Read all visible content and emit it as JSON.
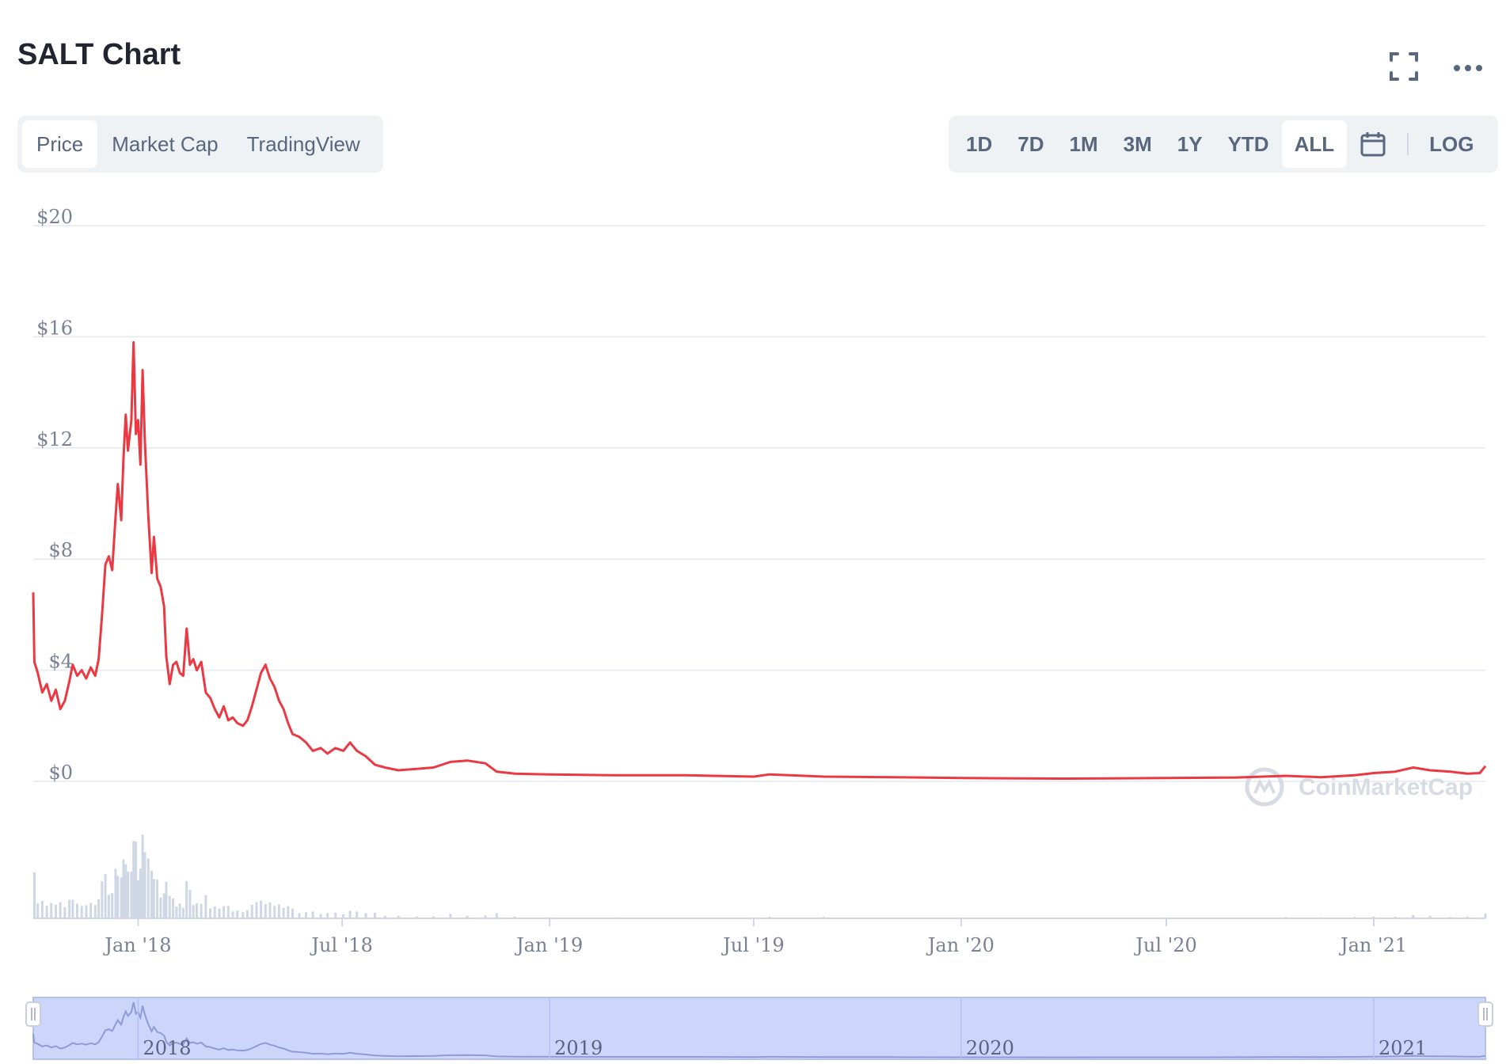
{
  "header": {
    "title": "SALT Chart",
    "fullscreen_icon": "fullscreen-icon",
    "more_icon": "more-icon"
  },
  "tabs": [
    {
      "label": "Price",
      "active": true
    },
    {
      "label": "Market Cap",
      "active": false
    },
    {
      "label": "TradingView",
      "active": false
    }
  ],
  "ranges": [
    {
      "label": "1D",
      "active": false
    },
    {
      "label": "7D",
      "active": false
    },
    {
      "label": "1M",
      "active": false
    },
    {
      "label": "3M",
      "active": false
    },
    {
      "label": "1Y",
      "active": false
    },
    {
      "label": "YTD",
      "active": false
    },
    {
      "label": "ALL",
      "active": true
    }
  ],
  "calendar_icon": "calendar-icon",
  "log_label": "LOG",
  "watermark": "CoinMarketCap",
  "colors": {
    "line": "#ea3943",
    "volume": "#cfd6e4",
    "navigator": "#ccd6fb",
    "grid": "#eff2f5"
  },
  "chart_data": {
    "type": "line",
    "title": "SALT Chart",
    "y_ticks": [
      "$0",
      "$4",
      "$8",
      "$12",
      "$16",
      "$20"
    ],
    "ylim": [
      0,
      20
    ],
    "x_ticks": [
      {
        "label": "Jan '18",
        "date": "2018-01-01"
      },
      {
        "label": "Jul '18",
        "date": "2018-07-01"
      },
      {
        "label": "Jan '19",
        "date": "2019-01-01"
      },
      {
        "label": "Jul '19",
        "date": "2019-07-01"
      },
      {
        "label": "Jan '20",
        "date": "2020-01-01"
      },
      {
        "label": "Jul '20",
        "date": "2020-07-01"
      },
      {
        "label": "Jan '21",
        "date": "2021-01-01"
      }
    ],
    "xlim": [
      "2017-09-30",
      "2021-04-10"
    ],
    "navigator_labels": [
      {
        "label": "2018",
        "date": "2018-01-01"
      },
      {
        "label": "2019",
        "date": "2019-01-01"
      },
      {
        "label": "2020",
        "date": "2020-01-01"
      },
      {
        "label": "2021",
        "date": "2021-01-01"
      }
    ],
    "series": [
      {
        "values": [
          [
            "2017-09-30",
            6.8
          ],
          [
            "2017-10-01",
            4.3
          ],
          [
            "2017-10-04",
            3.9
          ],
          [
            "2017-10-08",
            3.2
          ],
          [
            "2017-10-12",
            3.5
          ],
          [
            "2017-10-16",
            2.9
          ],
          [
            "2017-10-20",
            3.3
          ],
          [
            "2017-10-24",
            2.6
          ],
          [
            "2017-10-28",
            2.9
          ],
          [
            "2017-11-01",
            3.6
          ],
          [
            "2017-11-04",
            4.2
          ],
          [
            "2017-11-08",
            3.8
          ],
          [
            "2017-11-12",
            4.0
          ],
          [
            "2017-11-16",
            3.7
          ],
          [
            "2017-11-20",
            4.1
          ],
          [
            "2017-11-24",
            3.8
          ],
          [
            "2017-11-27",
            4.4
          ],
          [
            "2017-11-30",
            6.0
          ],
          [
            "2017-12-03",
            7.8
          ],
          [
            "2017-12-06",
            8.1
          ],
          [
            "2017-12-09",
            7.6
          ],
          [
            "2017-12-12",
            9.5
          ],
          [
            "2017-12-14",
            10.7
          ],
          [
            "2017-12-17",
            9.4
          ],
          [
            "2017-12-19",
            11.6
          ],
          [
            "2017-12-21",
            13.2
          ],
          [
            "2017-12-23",
            11.9
          ],
          [
            "2017-12-26",
            13.0
          ],
          [
            "2017-12-28",
            15.8
          ],
          [
            "2017-12-30",
            12.5
          ],
          [
            "2018-01-01",
            13.0
          ],
          [
            "2018-01-03",
            11.4
          ],
          [
            "2018-01-05",
            14.8
          ],
          [
            "2018-01-07",
            12.2
          ],
          [
            "2018-01-10",
            9.6
          ],
          [
            "2018-01-13",
            7.5
          ],
          [
            "2018-01-15",
            8.8
          ],
          [
            "2018-01-18",
            7.3
          ],
          [
            "2018-01-21",
            7.0
          ],
          [
            "2018-01-24",
            6.3
          ],
          [
            "2018-01-26",
            4.5
          ],
          [
            "2018-01-29",
            3.5
          ],
          [
            "2018-02-01",
            4.2
          ],
          [
            "2018-02-04",
            4.3
          ],
          [
            "2018-02-07",
            3.9
          ],
          [
            "2018-02-10",
            3.8
          ],
          [
            "2018-02-13",
            5.5
          ],
          [
            "2018-02-16",
            4.2
          ],
          [
            "2018-02-19",
            4.4
          ],
          [
            "2018-02-22",
            4.0
          ],
          [
            "2018-02-26",
            4.3
          ],
          [
            "2018-03-02",
            3.2
          ],
          [
            "2018-03-06",
            3.0
          ],
          [
            "2018-03-10",
            2.6
          ],
          [
            "2018-03-14",
            2.3
          ],
          [
            "2018-03-18",
            2.7
          ],
          [
            "2018-03-22",
            2.2
          ],
          [
            "2018-03-26",
            2.3
          ],
          [
            "2018-03-30",
            2.1
          ],
          [
            "2018-04-04",
            2.0
          ],
          [
            "2018-04-08",
            2.2
          ],
          [
            "2018-04-12",
            2.7
          ],
          [
            "2018-04-16",
            3.3
          ],
          [
            "2018-04-20",
            3.9
          ],
          [
            "2018-04-24",
            4.2
          ],
          [
            "2018-04-28",
            3.7
          ],
          [
            "2018-05-02",
            3.4
          ],
          [
            "2018-05-06",
            2.9
          ],
          [
            "2018-05-10",
            2.6
          ],
          [
            "2018-05-14",
            2.1
          ],
          [
            "2018-05-18",
            1.7
          ],
          [
            "2018-05-24",
            1.6
          ],
          [
            "2018-05-30",
            1.4
          ],
          [
            "2018-06-05",
            1.1
          ],
          [
            "2018-06-12",
            1.2
          ],
          [
            "2018-06-18",
            1.0
          ],
          [
            "2018-06-25",
            1.2
          ],
          [
            "2018-07-02",
            1.1
          ],
          [
            "2018-07-08",
            1.4
          ],
          [
            "2018-07-14",
            1.1
          ],
          [
            "2018-07-22",
            0.9
          ],
          [
            "2018-07-30",
            0.6
          ],
          [
            "2018-08-08",
            0.5
          ],
          [
            "2018-08-20",
            0.4
          ],
          [
            "2018-09-05",
            0.45
          ],
          [
            "2018-09-20",
            0.5
          ],
          [
            "2018-10-05",
            0.7
          ],
          [
            "2018-10-20",
            0.75
          ],
          [
            "2018-11-05",
            0.65
          ],
          [
            "2018-11-15",
            0.35
          ],
          [
            "2018-12-01",
            0.28
          ],
          [
            "2019-01-01",
            0.25
          ],
          [
            "2019-03-01",
            0.22
          ],
          [
            "2019-05-01",
            0.22
          ],
          [
            "2019-07-01",
            0.17
          ],
          [
            "2019-07-15",
            0.25
          ],
          [
            "2019-09-01",
            0.17
          ],
          [
            "2019-11-01",
            0.15
          ],
          [
            "2020-01-01",
            0.12
          ],
          [
            "2020-04-01",
            0.1
          ],
          [
            "2020-07-01",
            0.12
          ],
          [
            "2020-09-01",
            0.14
          ],
          [
            "2020-10-15",
            0.2
          ],
          [
            "2020-11-15",
            0.15
          ],
          [
            "2020-12-15",
            0.22
          ],
          [
            "2021-01-01",
            0.3
          ],
          [
            "2021-01-20",
            0.35
          ],
          [
            "2021-02-05",
            0.5
          ],
          [
            "2021-02-20",
            0.4
          ],
          [
            "2021-03-10",
            0.35
          ],
          [
            "2021-03-25",
            0.28
          ],
          [
            "2021-04-05",
            0.3
          ],
          [
            "2021-04-10",
            0.55
          ]
        ]
      }
    ]
  }
}
